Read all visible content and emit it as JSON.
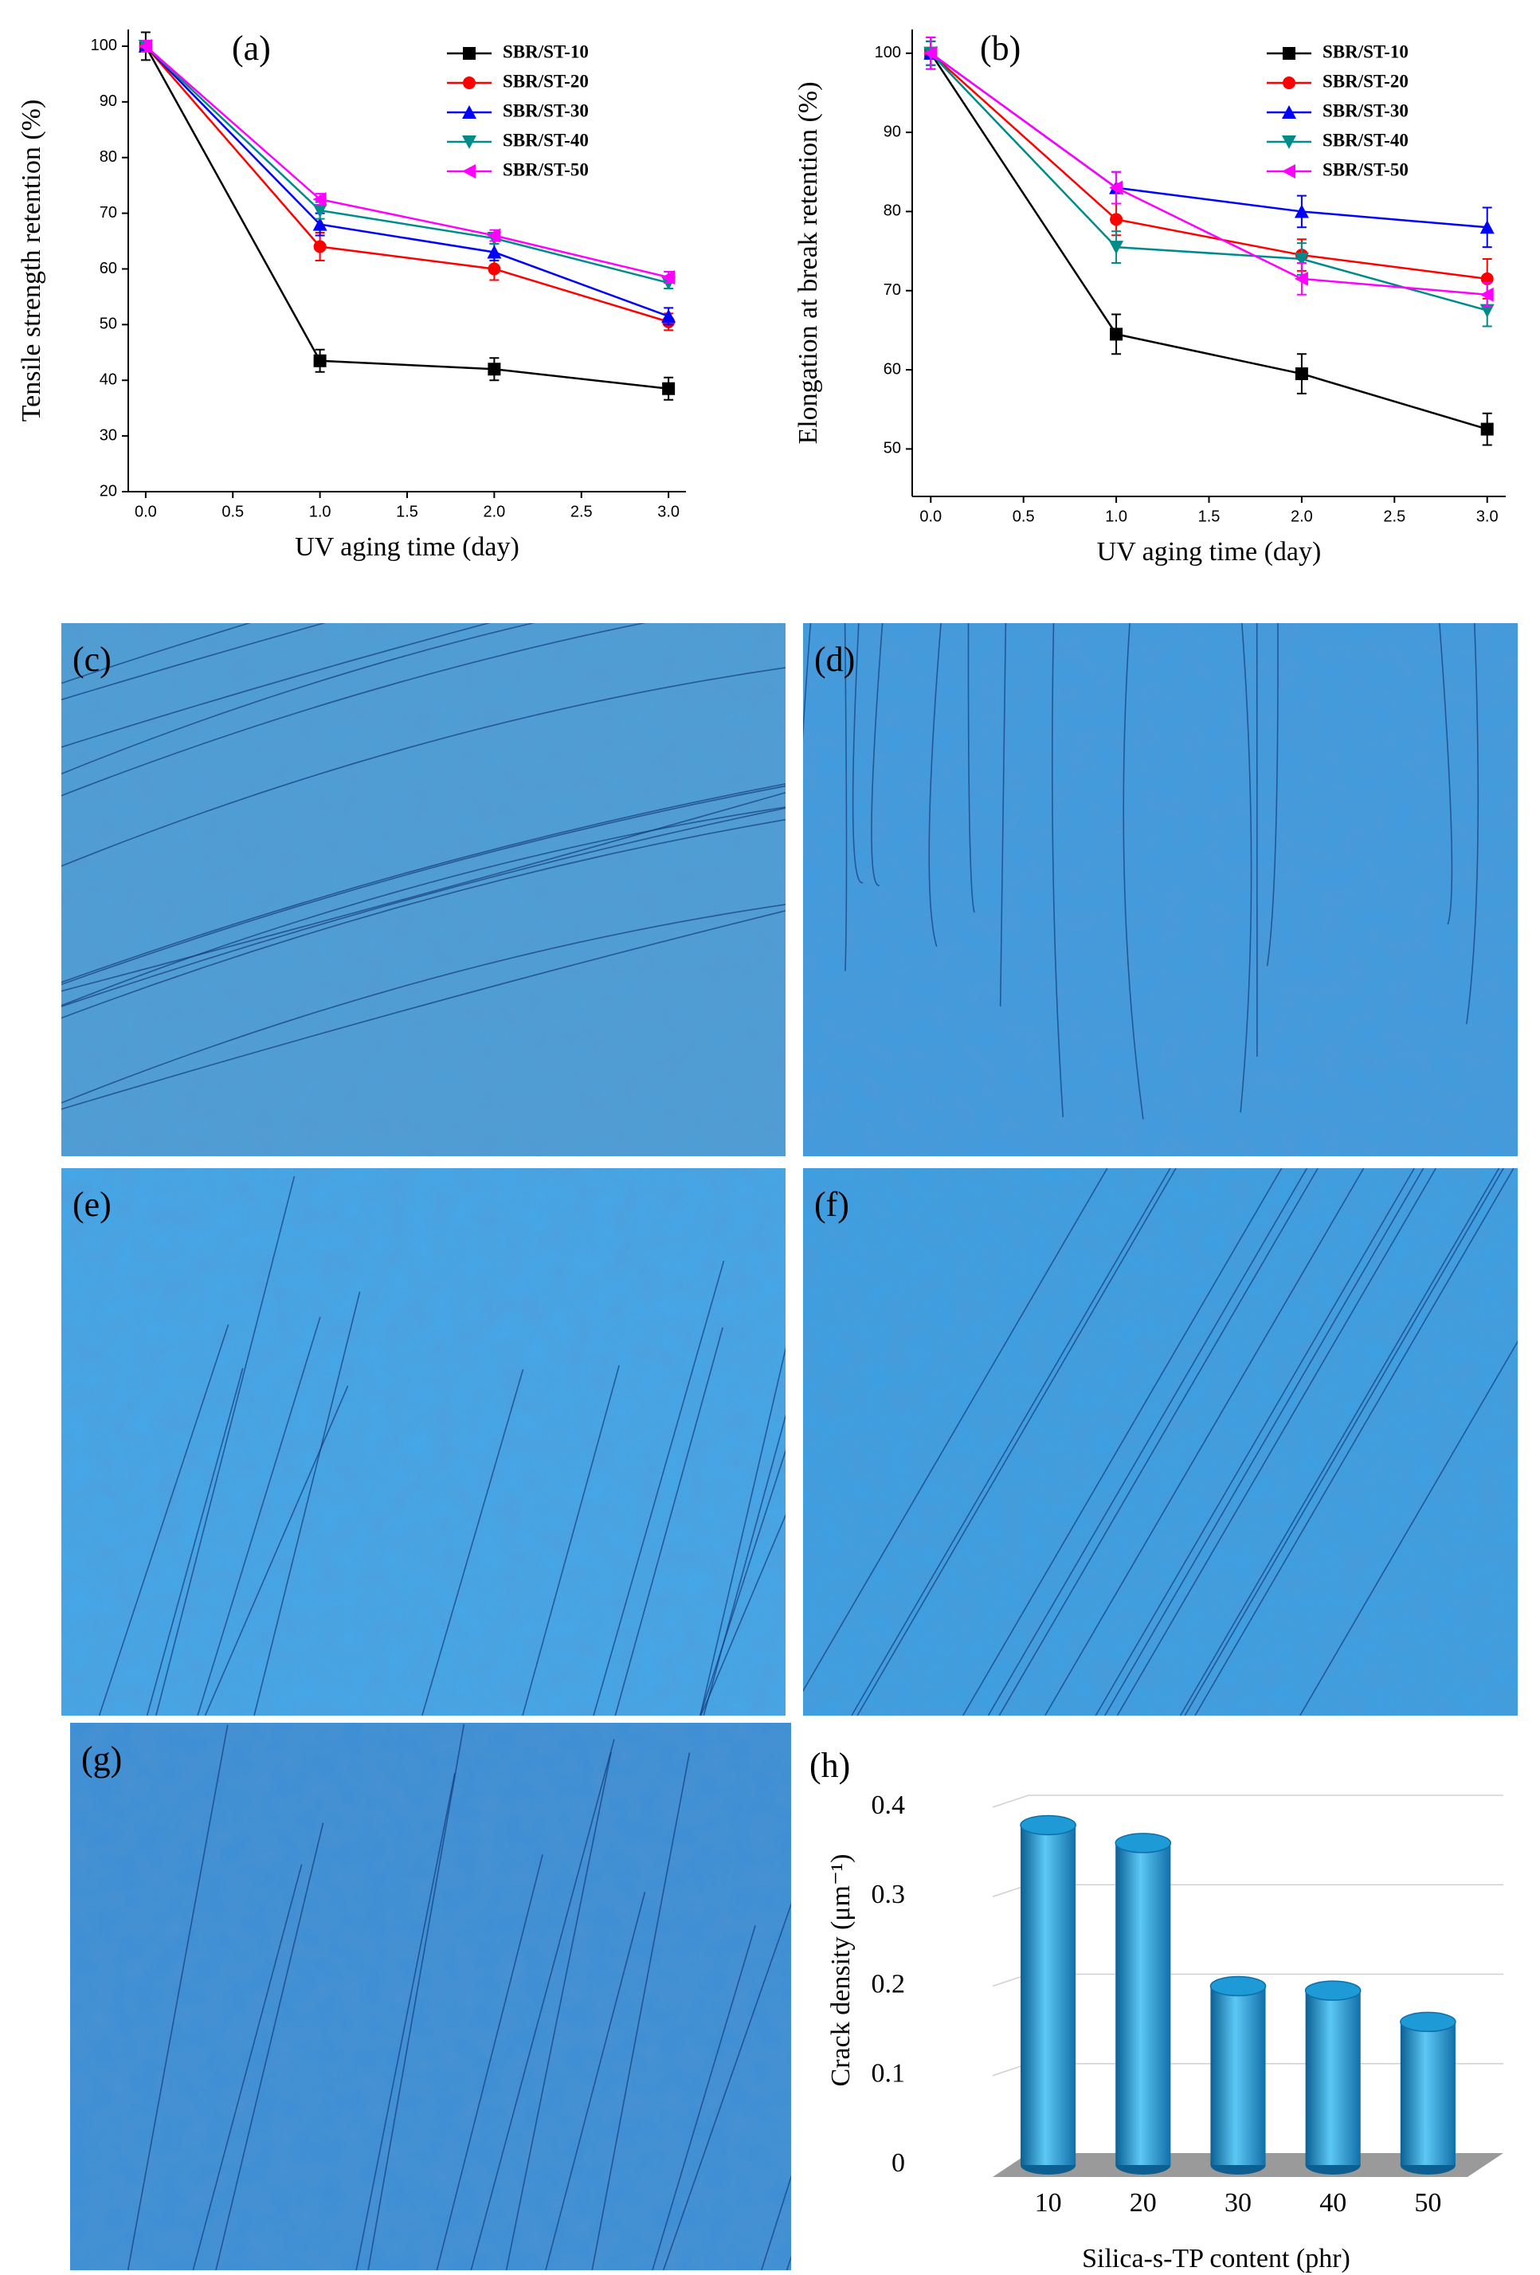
{
  "chart_data": [
    {
      "type": "line",
      "title": "(a)",
      "x_label": "UV aging time (day)",
      "y_label": "Tensile strength retention (%)",
      "x": [
        0,
        1,
        2,
        3
      ],
      "xlim": [
        -0.1,
        3.1
      ],
      "xticks": [
        {
          "value": 0,
          "label": "0.0"
        },
        {
          "value": 0.5,
          "label": "0.5"
        },
        {
          "value": 1,
          "label": "1.0"
        },
        {
          "value": 1.5,
          "label": "1.5"
        },
        {
          "value": 2,
          "label": "2.0"
        },
        {
          "value": 2.5,
          "label": "2.5"
        },
        {
          "value": 3,
          "label": "3.0"
        }
      ],
      "ylim": [
        20,
        103
      ],
      "yticks": [
        20,
        30,
        40,
        50,
        60,
        70,
        80,
        90,
        100
      ],
      "legend": "upper right",
      "series": [
        {
          "name": "SBR/ST-10",
          "color": "#000000",
          "marker": "square",
          "values": [
            100,
            43.5,
            42,
            38.5
          ],
          "errors": [
            2.5,
            2,
            2,
            2
          ]
        },
        {
          "name": "SBR/ST-20",
          "color": "#ff0000",
          "marker": "circle",
          "values": [
            100,
            64,
            60,
            50.5
          ],
          "errors": [
            1,
            2.5,
            2,
            1.5
          ]
        },
        {
          "name": "SBR/ST-30",
          "color": "#0000ff",
          "marker": "triangle-up",
          "values": [
            100,
            68,
            63,
            51.5
          ],
          "errors": [
            1,
            2,
            1.5,
            1.5
          ]
        },
        {
          "name": "SBR/ST-40",
          "color": "#008b8b",
          "marker": "triangle-down",
          "values": [
            100,
            70.5,
            65.5,
            57.5
          ],
          "errors": [
            1,
            1.5,
            1,
            1
          ]
        },
        {
          "name": "SBR/ST-50",
          "color": "#ff00ff",
          "marker": "triangle-left",
          "values": [
            100,
            72.5,
            66,
            58.5
          ],
          "errors": [
            1,
            1,
            1,
            1
          ]
        }
      ]
    },
    {
      "type": "line",
      "title": "(b)",
      "x_label": "UV aging time (day)",
      "y_label": "Elongation at break retention (%)",
      "x": [
        0,
        1,
        2,
        3
      ],
      "xlim": [
        -0.1,
        3.1
      ],
      "xticks": [
        {
          "value": 0,
          "label": "0.0"
        },
        {
          "value": 0.5,
          "label": "0.5"
        },
        {
          "value": 1,
          "label": "1.0"
        },
        {
          "value": 1.5,
          "label": "1.5"
        },
        {
          "value": 2,
          "label": "2.0"
        },
        {
          "value": 2.5,
          "label": "2.5"
        },
        {
          "value": 3,
          "label": "3.0"
        }
      ],
      "ylim": [
        44,
        103
      ],
      "yticks": [
        50,
        60,
        70,
        80,
        90,
        100
      ],
      "legend": "upper right",
      "series": [
        {
          "name": "SBR/ST-10",
          "color": "#000000",
          "marker": "square",
          "values": [
            100,
            64.5,
            59.5,
            52.5
          ],
          "errors": [
            2,
            2.5,
            2.5,
            2
          ]
        },
        {
          "name": "SBR/ST-20",
          "color": "#ff0000",
          "marker": "circle",
          "values": [
            100,
            79,
            74.5,
            71.5
          ],
          "errors": [
            1.5,
            2,
            2,
            2.5
          ]
        },
        {
          "name": "SBR/ST-30",
          "color": "#0000ff",
          "marker": "triangle-up",
          "values": [
            100,
            83,
            80,
            78
          ],
          "errors": [
            1.5,
            2,
            2,
            2.5
          ]
        },
        {
          "name": "SBR/ST-40",
          "color": "#008b8b",
          "marker": "triangle-down",
          "values": [
            100,
            75.5,
            74,
            67.5
          ],
          "errors": [
            1.5,
            2,
            2,
            2
          ]
        },
        {
          "name": "SBR/ST-50",
          "color": "#ff00ff",
          "marker": "triangle-left",
          "values": [
            100,
            83,
            71.5,
            69.5
          ],
          "errors": [
            2,
            2,
            2,
            1.5
          ]
        }
      ]
    },
    {
      "type": "bar",
      "title": "(h)",
      "x_label": "Silica-s-TP  content  (phr)",
      "y_label": "Crack density (μm⁻¹)",
      "categories": [
        "10",
        "20",
        "30",
        "40",
        "50"
      ],
      "values": [
        0.38,
        0.36,
        0.2,
        0.195,
        0.16
      ],
      "color": "#1e9ad6",
      "ylim": [
        0,
        0.4
      ],
      "yticks": [
        0,
        0.1,
        0.2,
        0.3,
        0.4
      ],
      "grid": true
    }
  ],
  "micrographs": [
    {
      "label": "(c)"
    },
    {
      "label": "(d)"
    },
    {
      "label": "(e)"
    },
    {
      "label": "(f)"
    },
    {
      "label": "(g)"
    }
  ]
}
